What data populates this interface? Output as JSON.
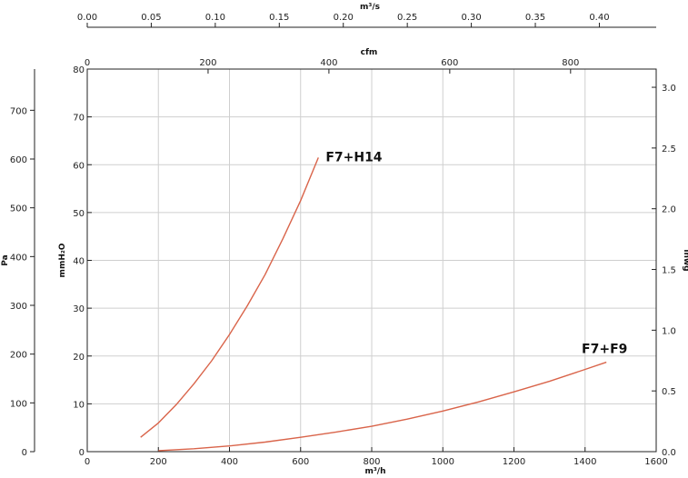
{
  "chart_data": {
    "type": "line",
    "title": "",
    "grid": true,
    "axes": {
      "x_bottom": {
        "label": "m³/h",
        "range": [
          0,
          1600
        ],
        "ticks": [
          0,
          200,
          400,
          600,
          800,
          1000,
          1200,
          1400,
          1600
        ]
      },
      "x_top_cfm": {
        "label": "cfm",
        "range": [
          0,
          941.7
        ],
        "ticks": [
          0,
          200,
          400,
          600,
          800
        ]
      },
      "x_top_m3s": {
        "label": "m³/s",
        "range": [
          0,
          0.4444
        ],
        "ticks": [
          "0.00",
          "0.05",
          "0.10",
          "0.15",
          "0.20",
          "0.25",
          "0.30",
          "0.35",
          "0.40"
        ]
      },
      "y_left_mmh2o": {
        "label": "mmH₂O",
        "range": [
          0,
          80
        ],
        "ticks": [
          0,
          10,
          20,
          30,
          40,
          50,
          60,
          70,
          80
        ]
      },
      "y_left_pa": {
        "label": "Pa",
        "range": [
          0,
          784.5
        ],
        "ticks": [
          0,
          100,
          200,
          300,
          400,
          500,
          600,
          700
        ]
      },
      "y_right_inwg": {
        "label": "inwg",
        "range": [
          0,
          3.15
        ],
        "ticks": [
          "0.0",
          "0.5",
          "1.0",
          "1.5",
          "2.0",
          "2.5",
          "3.0"
        ]
      }
    },
    "series": [
      {
        "name": "F7+H14",
        "color": "#d9644a",
        "x": [
          150,
          200,
          250,
          300,
          350,
          400,
          450,
          500,
          550,
          600,
          650
        ],
        "y": [
          3.0,
          6.0,
          9.8,
          14.2,
          19.0,
          24.5,
          30.5,
          37.0,
          44.5,
          52.5,
          61.5
        ]
      },
      {
        "name": "F7+F9",
        "color": "#d9644a",
        "x": [
          200,
          300,
          400,
          500,
          600,
          700,
          800,
          900,
          1000,
          1100,
          1200,
          1300,
          1400,
          1460
        ],
        "y": [
          0.2,
          0.6,
          1.2,
          2.0,
          3.0,
          4.1,
          5.3,
          6.8,
          8.5,
          10.4,
          12.5,
          14.7,
          17.2,
          18.7
        ]
      }
    ]
  }
}
